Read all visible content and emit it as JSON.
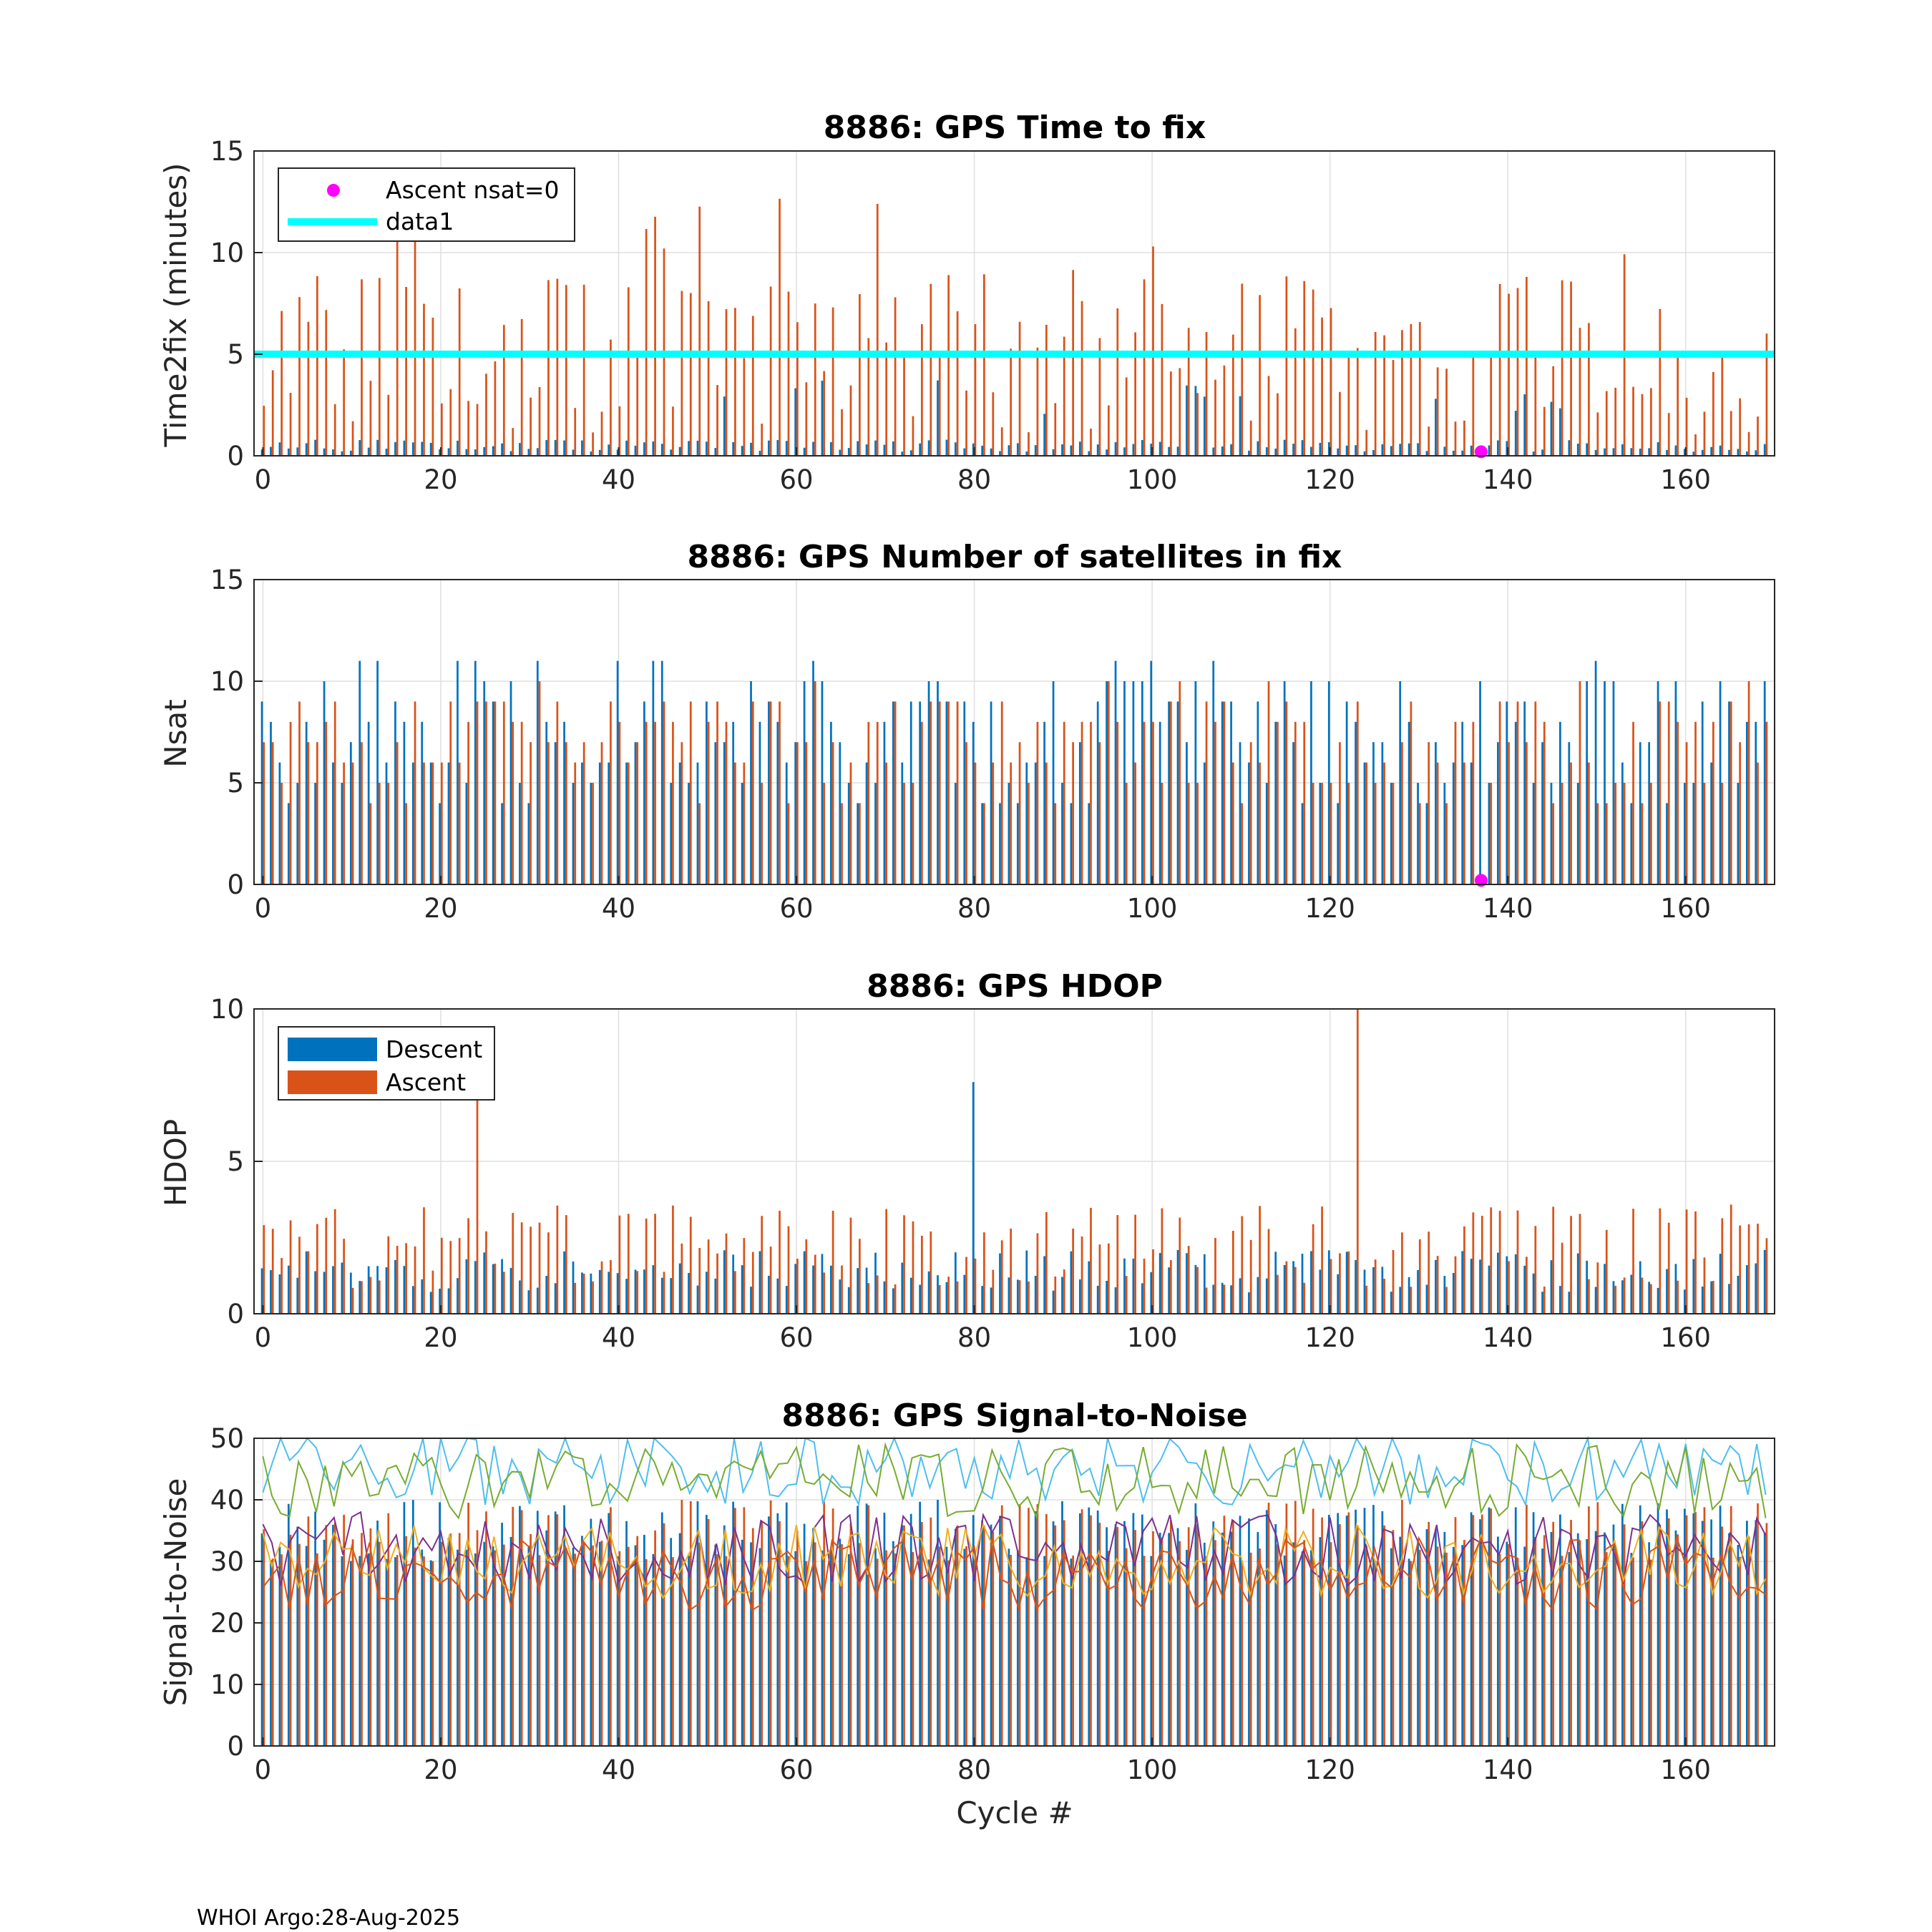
{
  "colors": {
    "descent": "#0072BD",
    "ascent": "#D95319",
    "magenta": "#FF00FF",
    "cyan": "#00FFFF",
    "grid": "#DFDFDF",
    "axis": "#262626",
    "snr_lines": [
      "#4DBEEE",
      "#77AC30",
      "#7E2F8E",
      "#EDB120",
      "#D95319"
    ]
  },
  "footer": "WHOI Argo:28-Aug-2025",
  "chart_data": [
    {
      "id": "ttf",
      "type": "bar",
      "title": "8886: GPS Time to fix",
      "xlabel": "",
      "ylabel": "Time2fix (minutes)",
      "xlim": [
        -1,
        170
      ],
      "ylim": [
        0,
        15
      ],
      "xticks": [
        0,
        20,
        40,
        60,
        80,
        100,
        120,
        140,
        160
      ],
      "yticks": [
        0,
        5,
        10,
        15
      ],
      "xtick_labels": [
        "0",
        "20",
        "40",
        "60",
        "80",
        "100",
        "120",
        "140",
        "160"
      ],
      "ytick_labels": [
        "0",
        "5",
        "10",
        "15"
      ],
      "reference_line": {
        "name": "data1",
        "y": 5
      },
      "marker": {
        "name": "Ascent nsat=0",
        "x": 137,
        "y": 0.2
      },
      "legend": [
        "Ascent nsat=0",
        "data1"
      ],
      "legend_position": "top-left",
      "grid": true
    },
    {
      "id": "nsat",
      "type": "bar",
      "title": "8886: GPS Number of satellites in fix",
      "xlabel": "",
      "ylabel": "Nsat",
      "xlim": [
        -1,
        170
      ],
      "ylim": [
        0,
        15
      ],
      "xticks": [
        0,
        20,
        40,
        60,
        80,
        100,
        120,
        140,
        160
      ],
      "yticks": [
        0,
        5,
        10,
        15
      ],
      "xtick_labels": [
        "0",
        "20",
        "40",
        "60",
        "80",
        "100",
        "120",
        "140",
        "160"
      ],
      "ytick_labels": [
        "0",
        "5",
        "10",
        "15"
      ],
      "marker": {
        "name": "Ascent nsat=0",
        "x": 137,
        "y": 0.2
      },
      "grid": true
    },
    {
      "id": "hdop",
      "type": "bar",
      "title": "8886: GPS HDOP",
      "xlabel": "",
      "ylabel": "HDOP",
      "xlim": [
        -1,
        170
      ],
      "ylim": [
        0,
        10
      ],
      "xticks": [
        0,
        20,
        40,
        60,
        80,
        100,
        120,
        140,
        160
      ],
      "yticks": [
        0,
        5,
        10
      ],
      "xtick_labels": [
        "0",
        "20",
        "40",
        "60",
        "80",
        "100",
        "120",
        "140",
        "160"
      ],
      "ytick_labels": [
        "0",
        "5",
        "10"
      ],
      "legend": [
        "Descent",
        "Ascent"
      ],
      "legend_position": "top-left",
      "grid": true
    },
    {
      "id": "snr",
      "type": "bar",
      "title": "8886: GPS Signal-to-Noise",
      "xlabel": "Cycle #",
      "ylabel": "Signal-to-Noise",
      "xlim": [
        -1,
        170
      ],
      "ylim": [
        0,
        50
      ],
      "xticks": [
        0,
        20,
        40,
        60,
        80,
        100,
        120,
        140,
        160
      ],
      "yticks": [
        0,
        10,
        20,
        30,
        40,
        50
      ],
      "xtick_labels": [
        "0",
        "20",
        "40",
        "60",
        "80",
        "100",
        "120",
        "140",
        "160"
      ],
      "ytick_labels": [
        "0",
        "10",
        "20",
        "30",
        "40",
        "50"
      ],
      "grid": true
    }
  ]
}
